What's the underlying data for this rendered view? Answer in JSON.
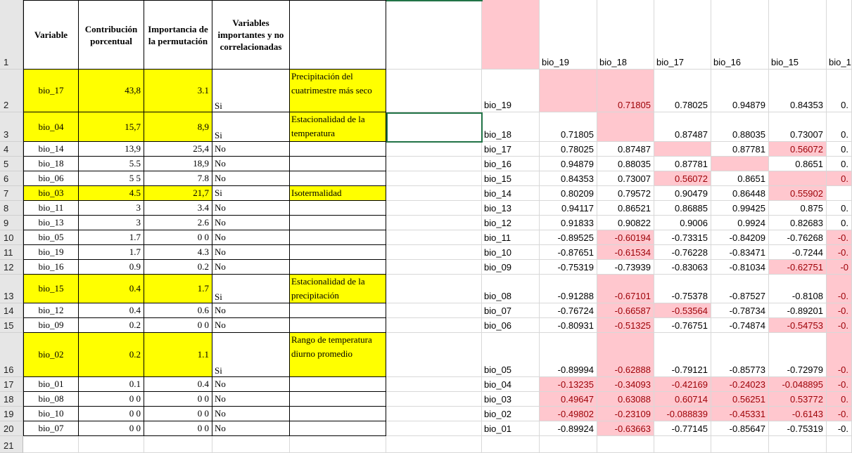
{
  "row_numbers": [
    "1",
    "2",
    "3",
    "4",
    "5",
    "6",
    "7",
    "8",
    "9",
    "10",
    "11",
    "12",
    "13",
    "14",
    "15",
    "16",
    "17",
    "18",
    "19",
    "20",
    "21"
  ],
  "table": {
    "headers": [
      "Variable",
      "Contribución porcentual",
      "Importancia de la permutación",
      "Variables importantes y no correlacionadas",
      ""
    ],
    "rows": [
      {
        "variable": "bio_17",
        "contrib": "43,8",
        "perm": "3.1",
        "important": "Si",
        "desc": "Precipitación del cuatrimestre más seco",
        "highlight": true
      },
      {
        "variable": "bio_04",
        "contrib": "15,7",
        "perm": "8,9",
        "important": "Si",
        "desc": "Estacionalidad de la temperatura",
        "highlight": true
      },
      {
        "variable": "bio_14",
        "contrib": "13,9",
        "perm": "25,4",
        "important": "No",
        "desc": "",
        "highlight": false
      },
      {
        "variable": "bio_18",
        "contrib": "5.5",
        "perm": "18,9",
        "important": "No",
        "desc": "",
        "highlight": false
      },
      {
        "variable": "bio_06",
        "contrib": "5 5",
        "perm": "7.8",
        "important": "No",
        "desc": "",
        "highlight": false
      },
      {
        "variable": "bio_03",
        "contrib": "4.5",
        "perm": "21,7",
        "important": "Si",
        "desc": "Isotermalidad",
        "highlight": true
      },
      {
        "variable": "bio_11",
        "contrib": "3",
        "perm": "3.4",
        "important": "No",
        "desc": "",
        "highlight": false
      },
      {
        "variable": "bio_13",
        "contrib": "3",
        "perm": "2.6",
        "important": "No",
        "desc": "",
        "highlight": false
      },
      {
        "variable": "bio_05",
        "contrib": "1.7",
        "perm": "0 0",
        "important": "No",
        "desc": "",
        "highlight": false
      },
      {
        "variable": "bio_19",
        "contrib": "1.7",
        "perm": "4.3",
        "important": "No",
        "desc": "",
        "highlight": false
      },
      {
        "variable": "bio_16",
        "contrib": "0.9",
        "perm": "0.2",
        "important": "No",
        "desc": "",
        "highlight": false
      },
      {
        "variable": "bio_15",
        "contrib": "0.4",
        "perm": "1.7",
        "important": "Si",
        "desc": "Estacionalidad de la precipitación",
        "highlight": true
      },
      {
        "variable": "bio_12",
        "contrib": "0.4",
        "perm": "0.6",
        "important": "No",
        "desc": "",
        "highlight": false
      },
      {
        "variable": "bio_09",
        "contrib": "0.2",
        "perm": "0 0",
        "important": "No",
        "desc": "",
        "highlight": false
      },
      {
        "variable": "bio_02",
        "contrib": "0.2",
        "perm": "1.1",
        "important": "Si",
        "desc": "Rango de temperatura diurno promedio",
        "highlight": true
      },
      {
        "variable": "bio_01",
        "contrib": "0.1",
        "perm": "0.4",
        "important": "No",
        "desc": "",
        "highlight": false
      },
      {
        "variable": "bio_08",
        "contrib": "0 0",
        "perm": "0 0",
        "important": "No",
        "desc": "",
        "highlight": false
      },
      {
        "variable": "bio_10",
        "contrib": "0 0",
        "perm": "0 0",
        "important": "No",
        "desc": "",
        "highlight": false
      },
      {
        "variable": "bio_07",
        "contrib": "0 0",
        "perm": "0 0",
        "important": "No",
        "desc": "",
        "highlight": false
      }
    ]
  },
  "matrix": {
    "col_headers": [
      "bio_19",
      "bio_18",
      "bio_17",
      "bio_16",
      "bio_15",
      "bio_1"
    ],
    "rows": [
      {
        "label": "bio_19",
        "values": [
          "",
          "0.71805",
          "0.78025",
          "0.94879",
          "0.84353",
          "0."
        ]
      },
      {
        "label": "bio_18",
        "values": [
          "0.71805",
          "",
          "0.87487",
          "0.88035",
          "0.73007",
          "0."
        ]
      },
      {
        "label": "bio_17",
        "values": [
          "0.78025",
          "0.87487",
          "",
          "0.87781",
          "0.56072",
          "0."
        ]
      },
      {
        "label": "bio_16",
        "values": [
          "0.94879",
          "0.88035",
          "0.87781",
          "",
          "0.8651",
          "0."
        ]
      },
      {
        "label": "bio_15",
        "values": [
          "0.84353",
          "0.73007",
          "0.56072",
          "0.8651",
          "",
          "0."
        ]
      },
      {
        "label": "bio_14",
        "values": [
          "0.80209",
          "0.79572",
          "0.90479",
          "0.86448",
          "0.55902",
          ""
        ]
      },
      {
        "label": "bio_13",
        "values": [
          "0.94117",
          "0.86521",
          "0.86885",
          "0.99425",
          "0.875",
          "0."
        ]
      },
      {
        "label": "bio_12",
        "values": [
          "0.91833",
          "0.90822",
          "0.9006",
          "0.9924",
          "0.82683",
          "0."
        ]
      },
      {
        "label": "bio_11",
        "values": [
          "-0.89525",
          "-0.60194",
          "-0.73315",
          "-0.84209",
          "-0.76268",
          "-0."
        ]
      },
      {
        "label": "bio_10",
        "values": [
          "-0.87651",
          "-0.61534",
          "-0.76228",
          "-0.83471",
          "-0.7244",
          "-0."
        ]
      },
      {
        "label": "bio_09",
        "values": [
          "-0.75319",
          "-0.73939",
          "-0.83063",
          "-0.81034",
          "-0.62751",
          "-0"
        ]
      },
      {
        "label": "bio_08",
        "values": [
          "-0.91288",
          "-0.67101",
          "-0.75378",
          "-0.87527",
          "-0.8108",
          "-0."
        ]
      },
      {
        "label": "bio_07",
        "values": [
          "-0.76724",
          "-0.66587",
          "-0.53564",
          "-0.78734",
          "-0.89201",
          "-0."
        ]
      },
      {
        "label": "bio_06",
        "values": [
          "-0.80931",
          "-0.51325",
          "-0.76751",
          "-0.74874",
          "-0.54753",
          "-0."
        ]
      },
      {
        "label": "bio_05",
        "values": [
          "-0.89994",
          "-0.62888",
          "-0.79121",
          "-0.85773",
          "-0.72979",
          "-0."
        ]
      },
      {
        "label": "bio_04",
        "values": [
          "-0.13235",
          "-0.34093",
          "-0.42169",
          "-0.24023",
          "-0.048895",
          "-0."
        ]
      },
      {
        "label": "bio_03",
        "values": [
          "0.49647",
          "0.63088",
          "0.60714",
          "0.56251",
          "0.53772",
          "0."
        ]
      },
      {
        "label": "bio_02",
        "values": [
          "-0.49802",
          "-0.23109",
          "-0.088839",
          "-0.45331",
          "-0.6143",
          "-0."
        ]
      },
      {
        "label": "bio_01",
        "values": [
          "-0.89924",
          "-0.63663",
          "-0.77145",
          "-0.85647",
          "-0.75319",
          "-0."
        ]
      }
    ],
    "pink": [
      [
        1,
        1,
        0,
        0,
        0,
        0
      ],
      [
        0,
        1,
        0,
        0,
        0,
        0
      ],
      [
        0,
        0,
        1,
        0,
        1,
        0
      ],
      [
        0,
        0,
        0,
        1,
        0,
        0
      ],
      [
        0,
        0,
        1,
        0,
        1,
        1
      ],
      [
        0,
        0,
        0,
        0,
        1,
        0
      ],
      [
        0,
        0,
        0,
        0,
        0,
        0
      ],
      [
        0,
        0,
        0,
        0,
        0,
        0
      ],
      [
        0,
        1,
        0,
        0,
        0,
        1
      ],
      [
        0,
        1,
        0,
        0,
        0,
        1
      ],
      [
        0,
        0,
        0,
        0,
        1,
        1
      ],
      [
        0,
        1,
        0,
        0,
        0,
        1
      ],
      [
        0,
        1,
        1,
        0,
        0,
        1
      ],
      [
        0,
        1,
        0,
        0,
        1,
        1
      ],
      [
        0,
        1,
        0,
        0,
        0,
        1
      ],
      [
        1,
        1,
        1,
        1,
        1,
        1
      ],
      [
        1,
        1,
        1,
        1,
        1,
        1
      ],
      [
        1,
        1,
        1,
        1,
        1,
        1
      ],
      [
        0,
        1,
        0,
        0,
        0,
        0
      ]
    ]
  },
  "colors": {
    "highlight": "#ffff00",
    "pink": "#ffc7ce",
    "pink_text": "#9c0006",
    "selection": "#217346"
  }
}
